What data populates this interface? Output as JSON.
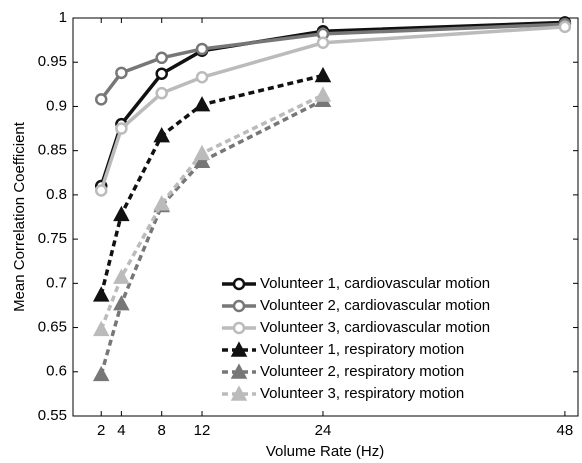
{
  "chart_data": {
    "type": "line",
    "x_label": "Volume Rate (Hz)",
    "y_label": "Mean Correlation Coefficient",
    "x": [
      2,
      4,
      8,
      12,
      24,
      48
    ],
    "series": [
      {
        "name": "Volunteer 1, cardiovascular motion",
        "color": "#111111",
        "marker": "circle",
        "dashed": false,
        "values": [
          0.81,
          0.88,
          0.937,
          0.963,
          0.985,
          0.995
        ]
      },
      {
        "name": "Volunteer 2, cardiovascular motion",
        "color": "#777777",
        "marker": "circle",
        "dashed": false,
        "values": [
          0.908,
          0.938,
          0.955,
          0.965,
          0.982,
          0.993
        ]
      },
      {
        "name": "Volunteer 3, cardiovascular motion",
        "color": "#bbbbbb",
        "marker": "circle",
        "dashed": false,
        "values": [
          0.805,
          0.875,
          0.915,
          0.933,
          0.972,
          0.99
        ]
      },
      {
        "name": "Volunteer 1, respiratory motion",
        "color": "#111111",
        "marker": "triangle",
        "dashed": true,
        "values": [
          0.687,
          0.778,
          0.867,
          0.902,
          0.935,
          null
        ]
      },
      {
        "name": "Volunteer 2, respiratory motion",
        "color": "#777777",
        "marker": "triangle",
        "dashed": true,
        "values": [
          0.597,
          0.677,
          0.788,
          0.838,
          0.907,
          null
        ]
      },
      {
        "name": "Volunteer 3, respiratory motion",
        "color": "#bbbbbb",
        "marker": "triangle",
        "dashed": true,
        "values": [
          0.648,
          0.707,
          0.79,
          0.847,
          0.913,
          null
        ]
      }
    ],
    "xlim": [
      -0.8,
      49.3
    ],
    "xticks": [
      2,
      4,
      8,
      12,
      24,
      48
    ],
    "ylim": [
      0.55,
      1
    ],
    "yticks": [
      0.55,
      0.6,
      0.65,
      0.7,
      0.75,
      0.8,
      0.85,
      0.9,
      0.95,
      1
    ],
    "legend": "lower right"
  }
}
